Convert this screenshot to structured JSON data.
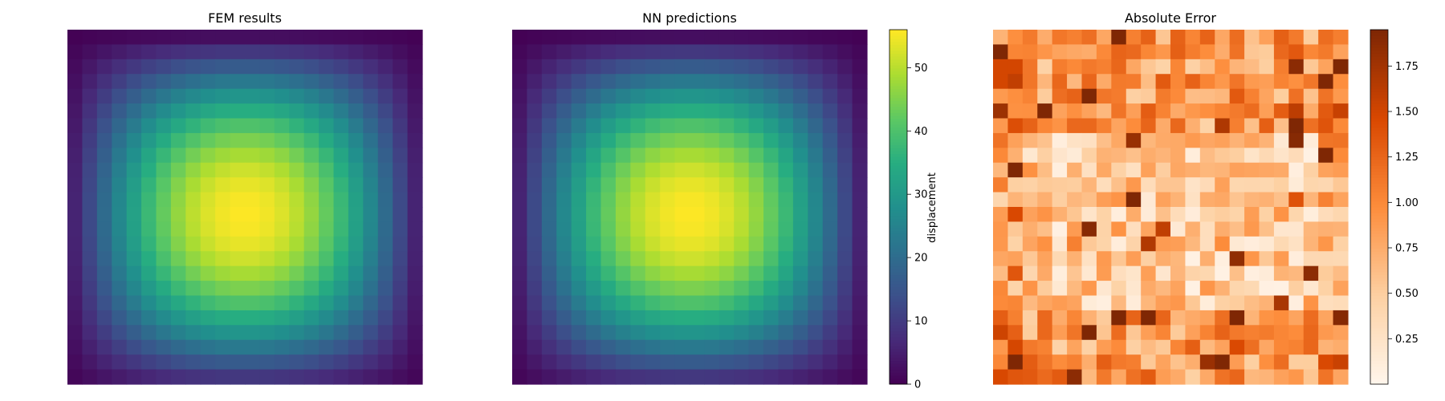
{
  "chart_data": [
    {
      "type": "heatmap",
      "title": "FEM results",
      "grid": [
        24,
        24
      ],
      "colormap": "viridis",
      "value_range": [
        0,
        56
      ],
      "peak_value": 56,
      "peak_cell": [
        12,
        11.5
      ],
      "axes_visible": false
    },
    {
      "type": "heatmap",
      "title": "NN predictions",
      "grid": [
        24,
        24
      ],
      "colormap": "viridis",
      "value_range": [
        0,
        56
      ],
      "peak_value": 56,
      "peak_cell": [
        12,
        11.5
      ],
      "axes_visible": false
    },
    {
      "type": "heatmap",
      "title": "Absolute Error",
      "grid": [
        24,
        24
      ],
      "colormap": "oranges",
      "value_range": [
        0.0,
        1.95
      ],
      "axes_visible": false
    }
  ],
  "colorbars": [
    {
      "label": "displacement",
      "ticks": [
        "0",
        "10",
        "20",
        "30",
        "40",
        "50"
      ],
      "tick_values": [
        0,
        10,
        20,
        30,
        40,
        50
      ],
      "range": [
        0,
        56
      ],
      "colormap": "viridis"
    },
    {
      "label": "",
      "ticks": [
        "0.25",
        "0.50",
        "0.75",
        "1.00",
        "1.25",
        "1.50",
        "1.75"
      ],
      "tick_values": [
        0.25,
        0.5,
        0.75,
        1.0,
        1.25,
        1.5,
        1.75
      ],
      "range": [
        0.0,
        1.95
      ],
      "colormap": "oranges"
    }
  ]
}
